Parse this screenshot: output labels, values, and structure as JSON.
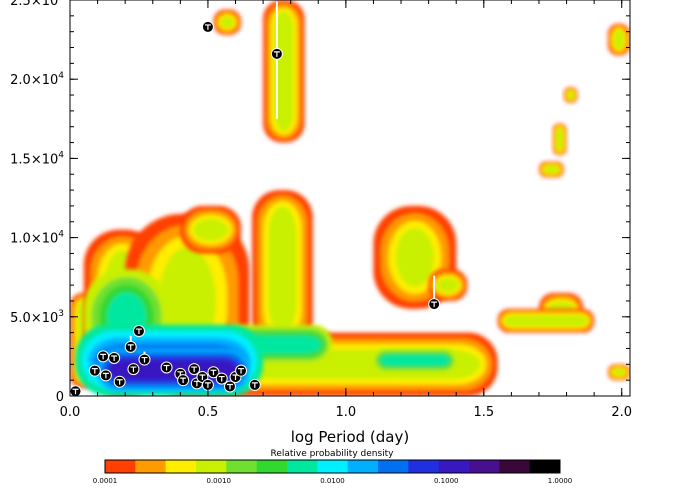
{
  "chart_data": {
    "type": "heatmap",
    "xlabel": "log Period (day)",
    "ylabel": "",
    "xlim": [
      0,
      2.03
    ],
    "ylim": [
      0,
      25000
    ],
    "x_ticks": [
      {
        "value": 0,
        "label": "0.0"
      },
      {
        "value": 0.5,
        "label": "0.5"
      },
      {
        "value": 1.0,
        "label": "1.0"
      },
      {
        "value": 1.5,
        "label": "1.5"
      },
      {
        "value": 2.0,
        "label": "2.0"
      }
    ],
    "y_ticks": [
      {
        "value": 0,
        "label": "0",
        "mant": "",
        "exp": ""
      },
      {
        "value": 5000,
        "label": "",
        "mant": "5.0×10",
        "exp": "3"
      },
      {
        "value": 10000,
        "label": "",
        "mant": "1.0×10",
        "exp": "4"
      },
      {
        "value": 15000,
        "label": "",
        "mant": "1.5×10",
        "exp": "4"
      },
      {
        "value": 20000,
        "label": "",
        "mant": "2.0×10",
        "exp": "4"
      },
      {
        "value": 25000,
        "label": "",
        "mant": "2.5×10",
        "exp": "4"
      }
    ],
    "density_regions": [
      {
        "x": [
          0.0,
          0.1
        ],
        "y": [
          500,
          6500
        ],
        "level": 2
      },
      {
        "x": [
          0.05,
          0.33
        ],
        "y": [
          0,
          10500
        ],
        "level": 2
      },
      {
        "x": [
          0.2,
          0.65
        ],
        "y": [
          500,
          11500
        ],
        "level": 2
      },
      {
        "x": [
          0.4,
          0.62
        ],
        "y": [
          9000,
          12000
        ],
        "level": 2
      },
      {
        "x": [
          0.7,
          0.85
        ],
        "y": [
          16000,
          25000
        ],
        "level": 2
      },
      {
        "x": [
          0.66,
          0.88
        ],
        "y": [
          3000,
          13000
        ],
        "level": 2
      },
      {
        "x": [
          0.3,
          1.55
        ],
        "y": [
          0,
          4000
        ],
        "level": 2
      },
      {
        "x": [
          1.1,
          1.4
        ],
        "y": [
          5500,
          12000
        ],
        "level": 2
      },
      {
        "x": [
          1.3,
          1.44
        ],
        "y": [
          6000,
          8000
        ],
        "level": 2
      },
      {
        "x": [
          0.52,
          0.62
        ],
        "y": [
          22800,
          24400
        ],
        "level": 2
      },
      {
        "x": [
          1.7,
          1.86
        ],
        "y": [
          4500,
          6500
        ],
        "level": 2
      },
      {
        "x": [
          1.55,
          1.9
        ],
        "y": [
          4000,
          5500
        ],
        "level": 2
      },
      {
        "x": [
          1.7,
          1.79
        ],
        "y": [
          13800,
          14800
        ],
        "level": 2
      },
      {
        "x": [
          1.75,
          1.8
        ],
        "y": [
          15200,
          17200
        ],
        "level": 2
      },
      {
        "x": [
          1.79,
          1.84
        ],
        "y": [
          18500,
          19500
        ],
        "level": 2
      },
      {
        "x": [
          1.95,
          2.03
        ],
        "y": [
          21500,
          23500
        ],
        "level": 2
      },
      {
        "x": [
          1.95,
          2.03
        ],
        "y": [
          1000,
          2000
        ],
        "level": 2
      },
      {
        "x": [
          0.05,
          0.36
        ],
        "y": [
          2000,
          8000
        ],
        "level": 5
      },
      {
        "x": [
          0.55,
          0.95
        ],
        "y": [
          2000,
          4500
        ],
        "level": 5
      },
      {
        "x": [
          1.1,
          1.4
        ],
        "y": [
          1500,
          3000
        ],
        "level": 5
      },
      {
        "x": [
          0.02,
          0.7
        ],
        "y": [
          0,
          4500
        ],
        "level": 8
      },
      {
        "x": [
          0.1,
          0.65
        ],
        "y": [
          300,
          3000
        ],
        "level": 10
      }
    ],
    "points": [
      {
        "x": 0.02,
        "y": 300
      },
      {
        "x": 0.09,
        "y": 1600
      },
      {
        "x": 0.12,
        "y": 2500
      },
      {
        "x": 0.13,
        "y": 1300
      },
      {
        "x": 0.16,
        "y": 2400
      },
      {
        "x": 0.18,
        "y": 900
      },
      {
        "x": 0.22,
        "y": 3100
      },
      {
        "x": 0.23,
        "y": 1700
      },
      {
        "x": 0.25,
        "y": 4100
      },
      {
        "x": 0.27,
        "y": 2300
      },
      {
        "x": 0.35,
        "y": 1800
      },
      {
        "x": 0.4,
        "y": 1400
      },
      {
        "x": 0.41,
        "y": 1000
      },
      {
        "x": 0.45,
        "y": 1700
      },
      {
        "x": 0.46,
        "y": 800
      },
      {
        "x": 0.48,
        "y": 1200
      },
      {
        "x": 0.5,
        "y": 700
      },
      {
        "x": 0.52,
        "y": 1500
      },
      {
        "x": 0.55,
        "y": 1100
      },
      {
        "x": 0.58,
        "y": 600
      },
      {
        "x": 0.6,
        "y": 1200
      },
      {
        "x": 0.62,
        "y": 1600
      },
      {
        "x": 0.67,
        "y": 700
      },
      {
        "x": 0.5,
        "y": 23300
      },
      {
        "x": 0.75,
        "y": 21600
      },
      {
        "x": 1.32,
        "y": 5800
      }
    ],
    "error_bars": [
      {
        "x": 0.75,
        "y0": 17500,
        "y1": 24900
      },
      {
        "x": 1.32,
        "y0": 5800,
        "y1": 7600
      },
      {
        "x": 0.22,
        "y0": 2800,
        "y1": 3800
      },
      {
        "x": 0.27,
        "y0": 2000,
        "y1": 2800
      }
    ],
    "colorbar": {
      "title": "Relative probability density",
      "colors": [
        "#ff4000",
        "#ff9a00",
        "#ffee00",
        "#c8f000",
        "#70e030",
        "#30d830",
        "#00e8a0",
        "#00f0ff",
        "#00b0ff",
        "#0070f0",
        "#2030e0",
        "#3818c0",
        "#48108f",
        "#3a0838",
        "#000000"
      ],
      "tick_labels": [
        "0.0001",
        "0.0010",
        "0.0100",
        "0.1000",
        "1.0000"
      ]
    }
  }
}
